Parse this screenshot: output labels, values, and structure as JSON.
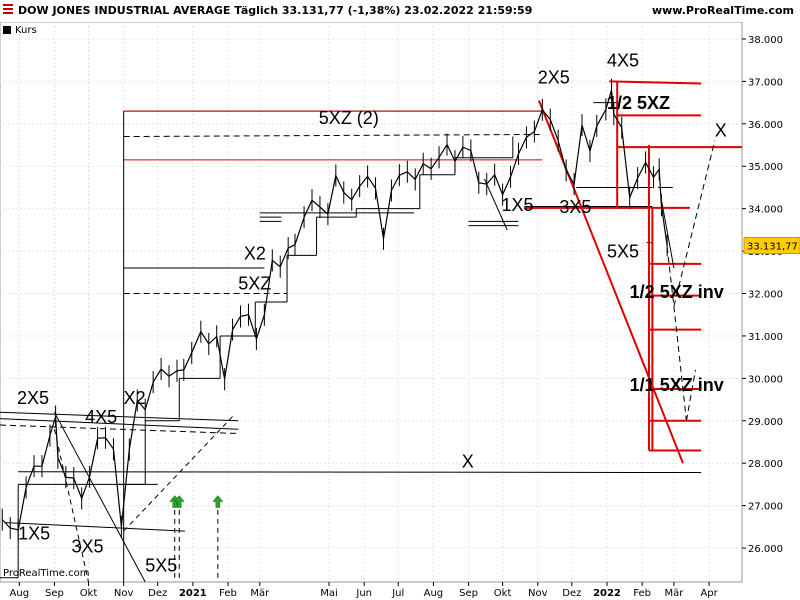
{
  "header": {
    "title": "DOW JONES INDUSTRIAL AVERAGE Täglich 33.131,77 (-1,38%) 23.02.2022 21:59:59",
    "brand": "www.ProRealTime.com",
    "legend_label": "Kurs",
    "watermark": "ProRealTime.com"
  },
  "colors": {
    "price": "#000000",
    "red_lines": "#e00000",
    "arrow_green": "#2e9e2e",
    "price_tag": "#ffcc00"
  },
  "chart_data": {
    "type": "line",
    "title": "DOW JONES INDUSTRIAL AVERAGE Täglich",
    "last_price_label": "33.131,77",
    "y_range": [
      25200,
      38400
    ],
    "y_ticks": [
      {
        "value": 26000,
        "label": "26.000"
      },
      {
        "value": 27000,
        "label": "27.000"
      },
      {
        "value": 28000,
        "label": "28.000"
      },
      {
        "value": 29000,
        "label": "29.000"
      },
      {
        "value": 30000,
        "label": "30.000"
      },
      {
        "value": 31000,
        "label": "31.000"
      },
      {
        "value": 32000,
        "label": "32.000"
      },
      {
        "value": 33000,
        "label": "33.000"
      },
      {
        "value": 34000,
        "label": "34.000"
      },
      {
        "value": 35000,
        "label": "35.000"
      },
      {
        "value": 36000,
        "label": "36.000"
      },
      {
        "value": 37000,
        "label": "37.000"
      },
      {
        "value": 38000,
        "label": "38.000"
      }
    ],
    "x_range": [
      "2020-07-15",
      "2022-04-30"
    ],
    "x_ticks": [
      {
        "date": "2020-08-01",
        "label": "Aug"
      },
      {
        "date": "2020-09-01",
        "label": "Sep"
      },
      {
        "date": "2020-10-01",
        "label": "Okt"
      },
      {
        "date": "2020-11-01",
        "label": "Nov"
      },
      {
        "date": "2020-12-01",
        "label": "Dez"
      },
      {
        "date": "2021-01-01",
        "label": "2021"
      },
      {
        "date": "2021-02-01",
        "label": "Feb"
      },
      {
        "date": "2021-03-01",
        "label": "Mär"
      },
      {
        "date": "2021-05-01",
        "label": "Mai"
      },
      {
        "date": "2021-06-01",
        "label": "Jun"
      },
      {
        "date": "2021-07-01",
        "label": "Jul"
      },
      {
        "date": "2021-08-01",
        "label": "Aug"
      },
      {
        "date": "2021-09-01",
        "label": "Sep"
      },
      {
        "date": "2021-10-01",
        "label": "Okt"
      },
      {
        "date": "2021-11-01",
        "label": "Nov"
      },
      {
        "date": "2021-12-01",
        "label": "Dez"
      },
      {
        "date": "2022-01-01",
        "label": "2022"
      },
      {
        "date": "2022-02-01",
        "label": "Feb"
      },
      {
        "date": "2022-03-01",
        "label": "Mär"
      },
      {
        "date": "2022-04-01",
        "label": "Apr"
      }
    ],
    "series": [
      {
        "points": [
          [
            "2020-07-17",
            26670
          ],
          [
            "2020-07-24",
            26470
          ],
          [
            "2020-07-31",
            26430
          ],
          [
            "2020-08-07",
            27430
          ],
          [
            "2020-08-14",
            27930
          ],
          [
            "2020-08-21",
            27930
          ],
          [
            "2020-08-28",
            28650
          ],
          [
            "2020-09-02",
            29100
          ],
          [
            "2020-09-04",
            28130
          ],
          [
            "2020-09-11",
            27670
          ],
          [
            "2020-09-18",
            27650
          ],
          [
            "2020-09-25",
            27170
          ],
          [
            "2020-10-02",
            27680
          ],
          [
            "2020-10-09",
            28590
          ],
          [
            "2020-10-16",
            28600
          ],
          [
            "2020-10-23",
            28330
          ],
          [
            "2020-10-30",
            26500
          ],
          [
            "2020-11-06",
            28320
          ],
          [
            "2020-11-13",
            29480
          ],
          [
            "2020-11-20",
            29260
          ],
          [
            "2020-11-27",
            29910
          ],
          [
            "2020-12-04",
            30220
          ],
          [
            "2020-12-11",
            30050
          ],
          [
            "2020-12-18",
            30180
          ],
          [
            "2020-12-24",
            30200
          ],
          [
            "2020-12-31",
            30600
          ],
          [
            "2021-01-08",
            31100
          ],
          [
            "2021-01-15",
            30810
          ],
          [
            "2021-01-22",
            30990
          ],
          [
            "2021-01-29",
            29980
          ],
          [
            "2021-02-05",
            31150
          ],
          [
            "2021-02-12",
            31460
          ],
          [
            "2021-02-19",
            31500
          ],
          [
            "2021-02-26",
            30930
          ],
          [
            "2021-03-05",
            31500
          ],
          [
            "2021-03-12",
            32780
          ],
          [
            "2021-03-19",
            32630
          ],
          [
            "2021-03-26",
            33070
          ],
          [
            "2021-04-01",
            33150
          ],
          [
            "2021-04-09",
            33800
          ],
          [
            "2021-04-16",
            34200
          ],
          [
            "2021-04-23",
            34040
          ],
          [
            "2021-04-30",
            33870
          ],
          [
            "2021-05-07",
            34780
          ],
          [
            "2021-05-14",
            34380
          ],
          [
            "2021-05-21",
            34210
          ],
          [
            "2021-05-28",
            34530
          ],
          [
            "2021-06-04",
            34760
          ],
          [
            "2021-06-11",
            34480
          ],
          [
            "2021-06-18",
            33290
          ],
          [
            "2021-06-25",
            34430
          ],
          [
            "2021-07-02",
            34790
          ],
          [
            "2021-07-09",
            34870
          ],
          [
            "2021-07-16",
            34690
          ],
          [
            "2021-07-23",
            35060
          ],
          [
            "2021-07-30",
            34940
          ],
          [
            "2021-08-06",
            35210
          ],
          [
            "2021-08-13",
            35510
          ],
          [
            "2021-08-20",
            35120
          ],
          [
            "2021-08-27",
            35450
          ],
          [
            "2021-09-03",
            35370
          ],
          [
            "2021-09-10",
            34610
          ],
          [
            "2021-09-17",
            34580
          ],
          [
            "2021-09-24",
            34800
          ],
          [
            "2021-10-01",
            34330
          ],
          [
            "2021-10-08",
            34750
          ],
          [
            "2021-10-15",
            35290
          ],
          [
            "2021-10-22",
            35680
          ],
          [
            "2021-10-29",
            35820
          ],
          [
            "2021-11-05",
            36330
          ],
          [
            "2021-11-12",
            36100
          ],
          [
            "2021-11-19",
            35600
          ],
          [
            "2021-11-26",
            34900
          ],
          [
            "2021-12-03",
            34580
          ],
          [
            "2021-12-10",
            35970
          ],
          [
            "2021-12-17",
            35360
          ],
          [
            "2021-12-23",
            35950
          ],
          [
            "2021-12-31",
            36340
          ],
          [
            "2022-01-05",
            36800
          ],
          [
            "2022-01-07",
            36230
          ],
          [
            "2022-01-14",
            35910
          ],
          [
            "2022-01-21",
            34260
          ],
          [
            "2022-01-28",
            34720
          ],
          [
            "2022-02-04",
            35090
          ],
          [
            "2022-02-11",
            34740
          ],
          [
            "2022-02-16",
            34930
          ],
          [
            "2022-02-18",
            34080
          ],
          [
            "2022-02-23",
            33131.77
          ]
        ]
      }
    ],
    "annotations": [
      {
        "text": "5XZ (2)",
        "date": "2021-04-22",
        "value": 36000
      },
      {
        "text": "2X5",
        "date": "2021-11-01",
        "value": 36950
      },
      {
        "text": "4X5",
        "date": "2022-01-01",
        "value": 37350
      },
      {
        "text": "1/2 5XZ",
        "date": "2022-01-01",
        "value": 36350
      },
      {
        "text": "X",
        "date": "2022-04-06",
        "value": 35700
      },
      {
        "text": "1X5",
        "date": "2021-09-30",
        "value": 33950
      },
      {
        "text": "3X5",
        "date": "2021-11-20",
        "value": 33900
      },
      {
        "text": "5X5",
        "date": "2022-01-01",
        "value": 32850
      },
      {
        "text": "1/2 5XZ inv",
        "date": "2022-01-21",
        "value": 31900
      },
      {
        "text": "1/1 5XZ inv",
        "date": "2022-01-21",
        "value": 29700
      },
      {
        "text": "X2",
        "date": "2021-02-15",
        "value": 32800
      },
      {
        "text": "5XZ",
        "date": "2021-02-10",
        "value": 32100
      },
      {
        "text": "2X5",
        "date": "2020-07-30",
        "value": 29400
      },
      {
        "text": "4X5",
        "date": "2020-09-28",
        "value": 28950
      },
      {
        "text": "X2",
        "date": "2020-11-01",
        "value": 29400
      },
      {
        "text": "X",
        "date": "2021-08-26",
        "value": 27900
      },
      {
        "text": "1X5",
        "date": "2020-07-31",
        "value": 26200
      },
      {
        "text": "3X5",
        "date": "2020-09-16",
        "value": 25900
      },
      {
        "text": "5X5",
        "date": "2020-11-20",
        "value": 25450
      }
    ],
    "up_arrows": [
      "2020-12-16",
      "2020-12-20",
      "2021-01-23"
    ]
  }
}
